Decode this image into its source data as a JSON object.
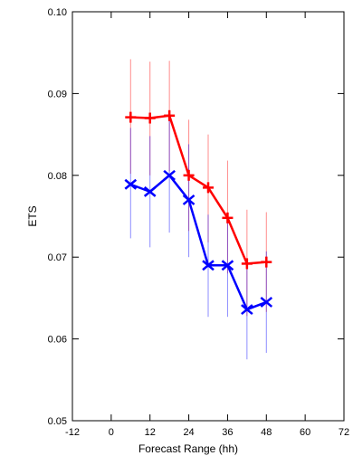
{
  "chart_data": {
    "type": "line",
    "title": "",
    "xlabel": "Forecast Range (hh)",
    "ylabel": "ETS",
    "xlim": [
      -12,
      72
    ],
    "ylim": [
      0.05,
      0.1
    ],
    "x_ticks": [
      -12,
      0,
      12,
      24,
      36,
      48,
      60,
      72
    ],
    "x_tick_labels": [
      "-12",
      "0",
      "12",
      "24",
      "36",
      "48",
      "60",
      "72"
    ],
    "y_ticks": [
      0.05,
      0.06,
      0.07,
      0.08,
      0.09,
      0.1
    ],
    "y_tick_labels": [
      "0.05",
      "0.06",
      "0.07",
      "0.08",
      "0.09",
      "0.10"
    ],
    "grid": false,
    "x": [
      6,
      12,
      18,
      24,
      30,
      36,
      42,
      48
    ],
    "series": [
      {
        "color": "#ff0000",
        "marker": "plus",
        "values": [
          0.0871,
          0.087,
          0.0873,
          0.08,
          0.0785,
          0.0748,
          0.0692,
          0.0694
        ],
        "error_low": [
          0.0802,
          0.08,
          0.0805,
          0.0732,
          0.0718,
          0.068,
          0.0628,
          0.0633
        ],
        "error_high": [
          0.0942,
          0.0939,
          0.094,
          0.0868,
          0.085,
          0.0818,
          0.0758,
          0.0755
        ]
      },
      {
        "color": "#0000ff",
        "marker": "x",
        "values": [
          0.0789,
          0.078,
          0.08,
          0.077,
          0.069,
          0.069,
          0.0636,
          0.0645
        ],
        "error_low": [
          0.0723,
          0.0712,
          0.073,
          0.07,
          0.0627,
          0.0627,
          0.0575,
          0.0583
        ],
        "error_high": [
          0.0858,
          0.0848,
          0.087,
          0.0838,
          0.0752,
          0.0752,
          0.0698,
          0.0707
        ]
      }
    ]
  }
}
